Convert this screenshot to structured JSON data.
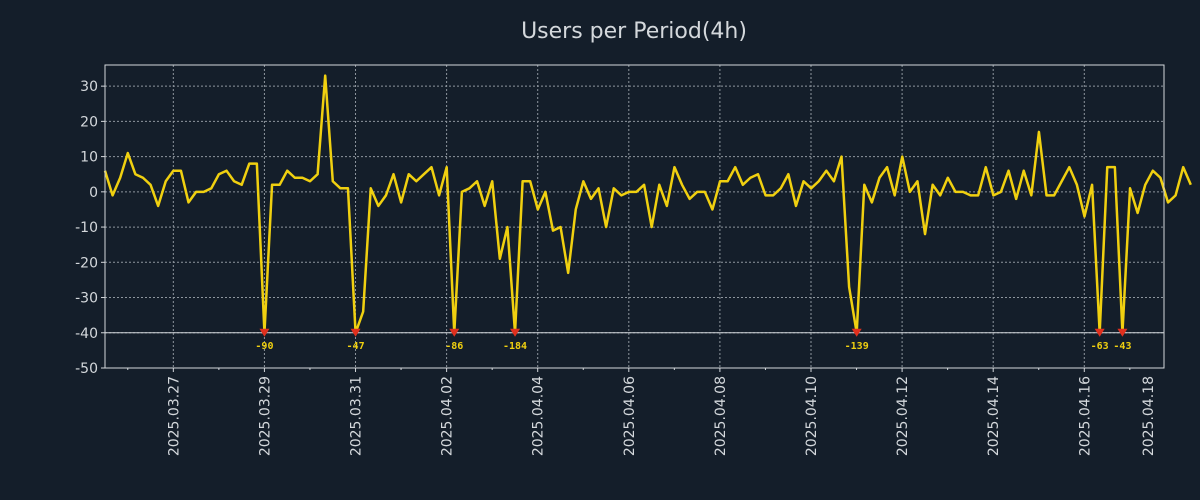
{
  "chart_data": {
    "type": "line",
    "title": "Users per Period(4h)",
    "xlabel": "",
    "ylabel": "",
    "ylim": [
      -50,
      36
    ],
    "xlim": [
      0,
      23.25
    ],
    "grid": true,
    "yticks": [
      30,
      20,
      10,
      0,
      -10,
      -20,
      -30,
      -40,
      -50
    ],
    "xtick_labels": [
      {
        "x": 1.5,
        "label": "2025.03.27"
      },
      {
        "x": 3.5,
        "label": "2025.03.29"
      },
      {
        "x": 5.5,
        "label": "2025.03.31"
      },
      {
        "x": 7.5,
        "label": "2025.04.02"
      },
      {
        "x": 9.5,
        "label": "2025.04.04"
      },
      {
        "x": 11.5,
        "label": "2025.04.06"
      },
      {
        "x": 13.5,
        "label": "2025.04.08"
      },
      {
        "x": 15.5,
        "label": "2025.04.10"
      },
      {
        "x": 17.5,
        "label": "2025.04.12"
      },
      {
        "x": 19.5,
        "label": "2025.04.14"
      },
      {
        "x": 21.5,
        "label": "2025.04.16"
      },
      {
        "x": 23.5,
        "label": "2025.04.18"
      }
    ],
    "reference_line_y": -40,
    "series": [
      {
        "name": "users",
        "color": "#f0d010",
        "step": 0.1667,
        "values": [
          6,
          -1,
          4,
          11,
          5,
          4,
          2,
          -4,
          3,
          6,
          6,
          -3,
          0,
          0,
          1,
          5,
          6,
          3,
          2,
          8,
          8,
          -40,
          2,
          2,
          6,
          4,
          4,
          3,
          5,
          33,
          3,
          1,
          1,
          -40,
          -34,
          1,
          -4,
          -1,
          5,
          -3,
          5,
          3,
          5,
          7,
          -1,
          7,
          -40,
          0,
          1,
          3,
          -4,
          3,
          -19,
          -10,
          -40,
          3,
          3,
          -5,
          0,
          -11,
          -10,
          -23,
          -5,
          3,
          -2,
          1,
          -10,
          1,
          -1,
          0,
          0,
          2,
          -10,
          2,
          -4,
          7,
          2,
          -2,
          0,
          0,
          -5,
          3,
          3,
          7,
          2,
          4,
          5,
          -1,
          -1,
          1,
          5,
          -4,
          3,
          1,
          3,
          6,
          3,
          10,
          -27,
          -40,
          2,
          -3,
          4,
          7,
          -1,
          10,
          0,
          3,
          -12,
          2,
          -1,
          4,
          0,
          0,
          -1,
          -1,
          7,
          -1,
          0,
          6,
          -2,
          6,
          -1,
          17,
          -1,
          -1,
          3,
          7,
          2,
          -7,
          2,
          -40,
          7,
          7,
          -40,
          1,
          -6,
          2,
          6,
          4,
          -3,
          -1,
          7,
          2
        ]
      }
    ],
    "annotations": [
      {
        "index": 21,
        "y": -40,
        "label": "-90"
      },
      {
        "index": 33,
        "y": -40,
        "label": "-47"
      },
      {
        "index": 46,
        "y": -40,
        "label": "-86"
      },
      {
        "index": 54,
        "y": -40,
        "label": "-184"
      },
      {
        "index": 99,
        "y": -40,
        "label": "-139"
      },
      {
        "index": 131,
        "y": -40,
        "label": "-63"
      },
      {
        "index": 134,
        "y": -40,
        "label": "-43"
      }
    ]
  }
}
